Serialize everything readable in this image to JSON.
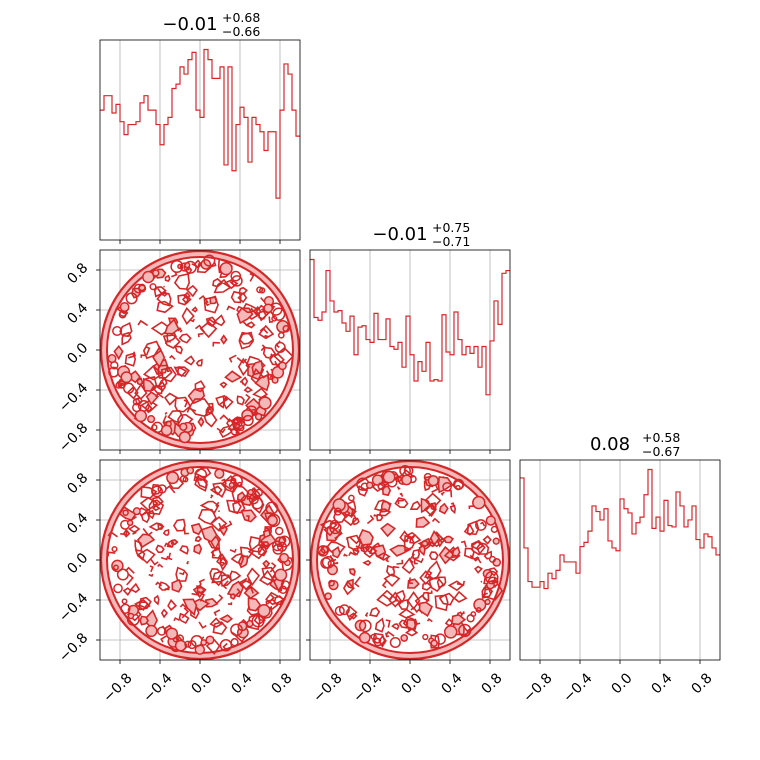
{
  "chart_data": {
    "type": "corner",
    "color": "#d62728",
    "parameters": [
      "",
      "",
      ""
    ],
    "range": [
      -1.0,
      1.0
    ],
    "ticks": [
      -0.8,
      -0.4,
      0.0,
      0.4,
      0.8
    ],
    "tick_labels": [
      "−0.8",
      "−0.4",
      "0.0",
      "0.4",
      "0.8"
    ],
    "grid": true,
    "titles": [
      {
        "median": "−0.01",
        "plus": "+0.68",
        "minus": "−0.66"
      },
      {
        "median": "−0.01",
        "plus": "+0.75",
        "minus": "−0.71"
      },
      {
        "median": "0.08",
        "plus": "+0.58",
        "minus": "−0.67"
      }
    ],
    "histograms": [
      {
        "bin_edges": [
          -1.0,
          0.9
        ],
        "bin_width": 0.04,
        "counts": [
          90,
          100,
          100,
          88,
          94,
          82,
          73,
          80,
          80,
          82,
          95,
          100,
          90,
          90,
          80,
          66,
          80,
          85,
          105,
          108,
          120,
          115,
          125,
          130,
          90,
          85,
          132,
          125,
          112,
          112,
          120,
          52,
          120,
          48,
          80,
          92,
          85,
          54,
          85,
          80,
          75,
          62,
          75,
          75,
          29,
          90,
          122,
          115,
          90,
          72
        ]
      },
      {
        "bin_width": 0.04,
        "counts": [
          138,
          96,
          94,
          100,
          130,
          108,
          100,
          101,
          92,
          86,
          97,
          69,
          89,
          90,
          80,
          78,
          99,
          80,
          80,
          95,
          75,
          73,
          78,
          60,
          97,
          69,
          50,
          64,
          57,
          78,
          50,
          51,
          50,
          98,
          71,
          69,
          100,
          80,
          69,
          75,
          70,
          75,
          60,
          75,
          40,
          79,
          108,
          91,
          128,
          130
        ]
      },
      {
        "bin_width": 0.04,
        "counts": [
          130,
          80,
          56,
          52,
          52,
          56,
          51,
          62,
          58,
          64,
          75,
          70,
          70,
          70,
          62,
          81,
          84,
          92,
          110,
          106,
          100,
          108,
          85,
          80,
          78,
          115,
          108,
          105,
          90,
          98,
          102,
          118,
          136,
          94,
          102,
          92,
          114,
          96,
          95,
          120,
          110,
          95,
          100,
          110,
          86,
          80,
          90,
          88,
          80,
          75
        ]
      }
    ],
    "pair_panels": [
      {
        "x": 0,
        "y": 1,
        "distribution": "uniform disc"
      },
      {
        "x": 0,
        "y": 2,
        "distribution": "uniform disc"
      },
      {
        "x": 1,
        "y": 2,
        "distribution": "uniform disc"
      }
    ]
  }
}
